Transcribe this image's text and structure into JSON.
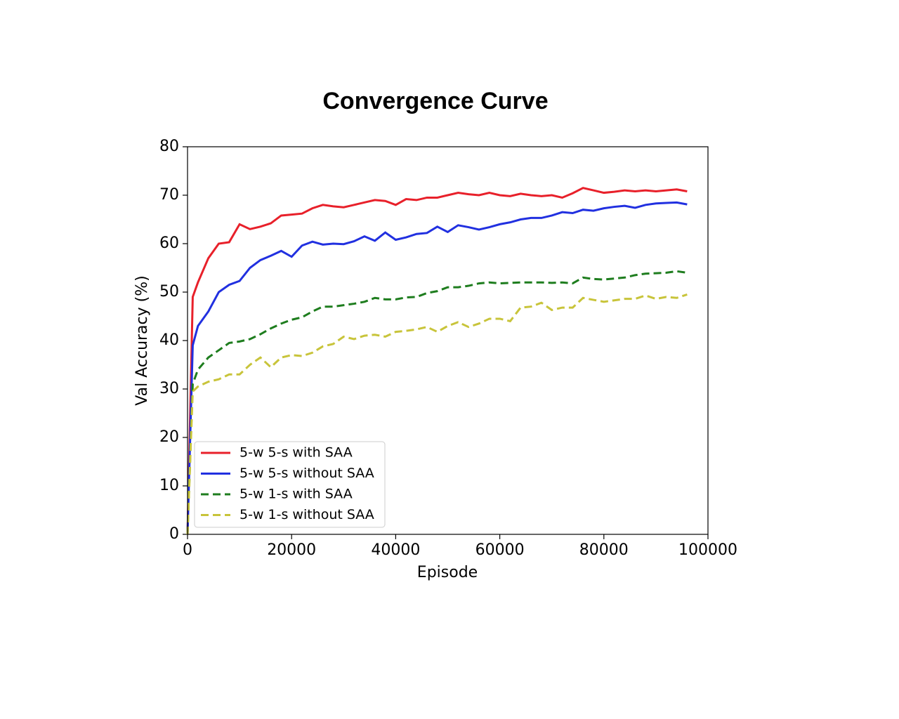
{
  "chart_data": {
    "type": "line",
    "title": "Convergence Curve",
    "x_label": "Episode",
    "y_label": "Val Accuracy (%)",
    "x": [
      0,
      1000,
      2000,
      4000,
      6000,
      8000,
      10000,
      12000,
      14000,
      16000,
      18000,
      20000,
      22000,
      24000,
      26000,
      28000,
      30000,
      32000,
      34000,
      36000,
      38000,
      40000,
      42000,
      44000,
      46000,
      48000,
      50000,
      52000,
      54000,
      56000,
      58000,
      60000,
      62000,
      64000,
      66000,
      68000,
      70000,
      72000,
      74000,
      76000,
      78000,
      80000,
      82000,
      84000,
      86000,
      88000,
      90000,
      92000,
      94000,
      96000
    ],
    "series": [
      {
        "name": "5-w 5-s with SAA",
        "color": "#e8202a",
        "dash": "solid",
        "values": [
          0,
          49,
          52,
          57,
          60,
          60.3,
          64,
          63,
          63.5,
          64.2,
          65.8,
          66,
          66.2,
          67.3,
          68,
          67.7,
          67.5,
          68,
          68.5,
          69,
          68.8,
          68,
          69.2,
          69,
          69.5,
          69.5,
          70,
          70.5,
          70.2,
          70,
          70.5,
          70,
          69.8,
          70.3,
          70,
          69.8,
          70,
          69.5,
          70.4,
          71.5,
          71,
          70.5,
          70.7,
          71,
          70.8,
          71,
          70.8,
          71,
          71.2,
          70.8
        ]
      },
      {
        "name": "5-w 5-s without SAA",
        "color": "#2130e0",
        "dash": "solid",
        "values": [
          0,
          39,
          43,
          46,
          50,
          51.5,
          52.3,
          55,
          56.6,
          57.5,
          58.5,
          57.3,
          59.6,
          60.4,
          59.8,
          60,
          59.9,
          60.5,
          61.5,
          60.6,
          62.3,
          60.8,
          61.3,
          62,
          62.2,
          63.5,
          62.4,
          63.8,
          63.4,
          62.9,
          63.4,
          64,
          64.4,
          65,
          65.3,
          65.3,
          65.8,
          66.5,
          66.3,
          67,
          66.8,
          67.3,
          67.6,
          67.8,
          67.4,
          68,
          68.3,
          68.4,
          68.5,
          68.1
        ]
      },
      {
        "name": "5-w 1-s with SAA",
        "color": "#1e7d1e",
        "dash": "dashed",
        "values": [
          0,
          31,
          34,
          36.5,
          38,
          39.5,
          39.8,
          40.3,
          41.3,
          42.5,
          43.5,
          44.3,
          44.8,
          46,
          47,
          47,
          47.3,
          47.6,
          48,
          48.8,
          48.5,
          48.5,
          48.9,
          49,
          49.8,
          50.2,
          51,
          51,
          51.3,
          51.8,
          52,
          51.8,
          51.9,
          52,
          52,
          52,
          51.9,
          52,
          51.8,
          53,
          52.7,
          52.6,
          52.8,
          53,
          53.5,
          53.8,
          53.9,
          54,
          54.3,
          54
        ]
      },
      {
        "name": "5-w 1-s without SAA",
        "color": "#c8c43a",
        "dash": "dashed",
        "values": [
          0,
          29.5,
          30.5,
          31.5,
          32,
          33,
          33,
          35,
          36.5,
          34.5,
          36.5,
          37,
          36.8,
          37.5,
          38.8,
          39.3,
          40.8,
          40.3,
          41,
          41.2,
          40.8,
          41.8,
          42,
          42.3,
          42.8,
          41.8,
          43,
          43.8,
          42.8,
          43.5,
          44.5,
          44.5,
          44,
          46.8,
          47,
          47.8,
          46.3,
          46.8,
          46.8,
          48.8,
          48.4,
          48,
          48.3,
          48.6,
          48.6,
          49.3,
          48.6,
          49,
          48.8,
          49.5
        ]
      }
    ],
    "xlim": [
      0,
      100000
    ],
    "xticks": [
      0,
      20000,
      40000,
      60000,
      80000,
      100000
    ],
    "ylim": [
      0,
      80
    ],
    "yticks": [
      0,
      10,
      20,
      30,
      40,
      50,
      60,
      70,
      80
    ],
    "grid": false,
    "legend": "lower left"
  }
}
